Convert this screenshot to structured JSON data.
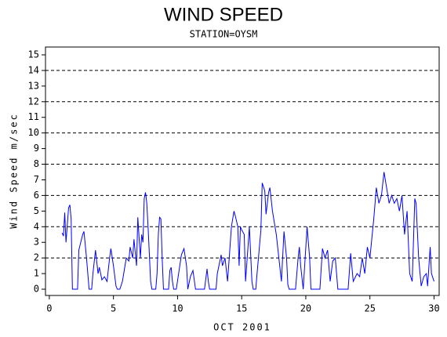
{
  "chart_data": {
    "type": "line",
    "title": "WIND SPEED",
    "subtitle": "STATION=OYSM",
    "ylabel": "Wind Speed m/sec",
    "xlabel": "OCT 2001",
    "color": "#0000ff",
    "x": [
      1.0,
      1.1,
      1.2,
      1.3,
      1.5,
      1.6,
      1.7,
      1.8,
      2.2,
      2.3,
      2.6,
      2.7,
      2.9,
      3.0,
      3.1,
      3.3,
      3.4,
      3.6,
      3.8,
      3.9,
      4.1,
      4.3,
      4.5,
      4.7,
      4.8,
      5.0,
      5.2,
      5.3,
      5.5,
      5.7,
      5.9,
      6.0,
      6.2,
      6.3,
      6.5,
      6.6,
      6.8,
      6.9,
      7.1,
      7.2,
      7.3,
      7.4,
      7.5,
      7.6,
      7.7,
      7.9,
      8.0,
      8.3,
      8.4,
      8.5,
      8.6,
      8.7,
      8.8,
      8.9,
      9.3,
      9.4,
      9.5,
      9.6,
      9.7,
      9.9,
      10.3,
      10.5,
      10.7,
      10.8,
      11.0,
      11.2,
      11.4,
      12.1,
      12.3,
      12.4,
      12.5,
      13.0,
      13.1,
      13.4,
      13.5,
      13.7,
      13.9,
      14.2,
      14.4,
      14.5,
      14.7,
      14.8,
      14.9,
      15.0,
      15.2,
      15.3,
      15.5,
      15.6,
      15.8,
      15.9,
      16.1,
      16.2,
      16.5,
      16.6,
      16.8,
      16.9,
      17.1,
      17.2,
      17.4,
      17.7,
      17.9,
      18.1,
      18.3,
      18.5,
      18.6,
      18.7,
      19.2,
      19.4,
      19.5,
      19.6,
      19.8,
      20.1,
      20.3,
      20.4,
      21.1,
      21.3,
      21.5,
      21.7,
      21.9,
      22.1,
      22.3,
      22.5,
      23.3,
      23.5,
      23.7,
      24.0,
      24.2,
      24.4,
      24.6,
      24.8,
      25.0,
      25.3,
      25.5,
      25.7,
      25.9,
      26.1,
      26.3,
      26.5,
      26.7,
      26.9,
      27.1,
      27.3,
      27.5,
      27.7,
      27.9,
      28.1,
      28.3,
      28.5,
      28.6,
      28.8,
      29.0,
      29.2,
      29.4,
      29.5,
      29.7,
      29.8,
      30.0
    ],
    "values": [
      3.6,
      3.4,
      4.9,
      3.0,
      5.2,
      5.4,
      4.5,
      0,
      0,
      2.5,
      3.5,
      3.7,
      2.0,
      1.0,
      0,
      0,
      1.0,
      2.5,
      1.0,
      1.4,
      0.6,
      0.8,
      0.5,
      2.0,
      2.6,
      1.5,
      0.2,
      0,
      0,
      0.5,
      1.5,
      2.0,
      1.8,
      2.7,
      2.0,
      3.2,
      1.5,
      4.6,
      2.0,
      3.5,
      3.0,
      5.8,
      6.2,
      5.5,
      4.0,
      0.5,
      0,
      0,
      1.0,
      3.5,
      4.6,
      4.5,
      2.0,
      0,
      0,
      1.2,
      1.4,
      0.5,
      0,
      0,
      2.2,
      2.6,
      1.5,
      0,
      0.8,
      1.2,
      0,
      0,
      1.3,
      0.5,
      0,
      0,
      1.0,
      2.2,
      1.5,
      2.0,
      0.5,
      4.0,
      5.0,
      4.7,
      4.0,
      1.5,
      4.0,
      3.8,
      3.5,
      0.5,
      2.8,
      4.0,
      0.5,
      0,
      0,
      1.0,
      3.8,
      6.8,
      6.3,
      4.8,
      6.2,
      6.5,
      5.0,
      3.5,
      2.0,
      0.5,
      3.7,
      2.0,
      0.3,
      0,
      0,
      2.0,
      2.7,
      1.5,
      0,
      4.0,
      2.0,
      0,
      0,
      2.6,
      2.0,
      2.5,
      0.5,
      1.8,
      2.0,
      0,
      0,
      2.3,
      0.5,
      1.0,
      0.8,
      2.0,
      1.0,
      2.7,
      2.0,
      4.5,
      6.5,
      5.5,
      6.0,
      7.5,
      6.5,
      5.5,
      6.0,
      5.5,
      5.8,
      5.0,
      6.0,
      3.5,
      5.0,
      1.0,
      0.5,
      5.8,
      5.5,
      2.0,
      0.2,
      0.8,
      1.0,
      0.2,
      2.7,
      1.0,
      0.5
    ],
    "xlim": [
      -0.3,
      30.4
    ],
    "ylim": [
      -0.4,
      15.5
    ],
    "xticks": [
      0,
      5,
      10,
      15,
      20,
      25,
      30
    ],
    "yticks": [
      0,
      1,
      2,
      3,
      4,
      5,
      6,
      7,
      8,
      9,
      10,
      11,
      12,
      13,
      14,
      15
    ],
    "ygrid": [
      2,
      4,
      6,
      8,
      10,
      12,
      14
    ]
  }
}
